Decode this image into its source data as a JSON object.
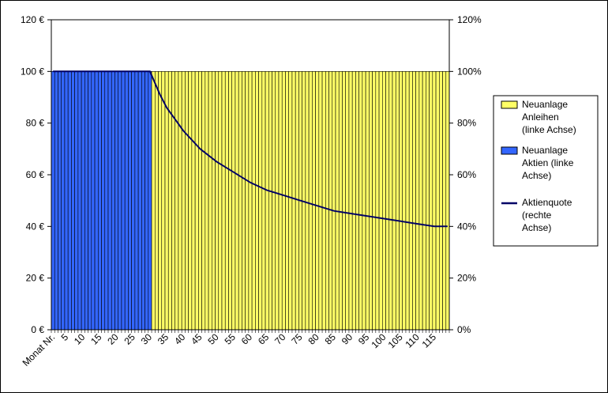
{
  "chart_data": {
    "type": "bar",
    "x": {
      "start": 1,
      "end": 119,
      "tick_values": [
        5,
        10,
        15,
        20,
        25,
        30,
        35,
        40,
        45,
        50,
        55,
        60,
        65,
        70,
        75,
        80,
        85,
        90,
        95,
        100,
        105,
        110,
        115
      ],
      "first_tick_label": "Monat Nr."
    },
    "y_left": {
      "ylim": [
        0,
        120
      ],
      "ticks": [
        "0 €",
        "20 €",
        "40 €",
        "60 €",
        "80 €",
        "100 €",
        "120 €"
      ]
    },
    "y_right": {
      "ylim": [
        0,
        120
      ],
      "ticks": [
        "0%",
        "20%",
        "40%",
        "60%",
        "80%",
        "100%",
        "120%"
      ]
    },
    "series": [
      {
        "name": "Neuanlage Anleihen (linke Achse)",
        "kind": "bar",
        "color": "#ffff66",
        "rule": "value 100 for months 31–119, 0 otherwise"
      },
      {
        "name": "Neuanlage Aktien (linke Achse)",
        "kind": "bar",
        "color": "#3366ff",
        "rule": "value 100 for months 1–30, 0 otherwise"
      },
      {
        "name": "Aktienquote (rechte Achse)",
        "kind": "line",
        "color": "#000066",
        "points": [
          [
            1,
            100
          ],
          [
            30,
            100
          ],
          [
            33,
            91
          ],
          [
            35,
            86
          ],
          [
            40,
            77
          ],
          [
            45,
            70
          ],
          [
            50,
            65
          ],
          [
            55,
            61
          ],
          [
            60,
            57
          ],
          [
            65,
            54
          ],
          [
            70,
            52
          ],
          [
            75,
            50
          ],
          [
            80,
            48
          ],
          [
            85,
            46
          ],
          [
            90,
            45
          ],
          [
            95,
            44
          ],
          [
            100,
            43
          ],
          [
            105,
            42
          ],
          [
            110,
            41
          ],
          [
            115,
            40
          ],
          [
            119,
            40
          ]
        ]
      }
    ],
    "legend_placement": "right",
    "grid": false
  },
  "legend": {
    "items": [
      {
        "label": "Neuanlage Anleihen (linke Achse)",
        "lines": [
          "Neuanlage",
          "Anleihen",
          "(linke Achse)"
        ],
        "color": "#ffff66",
        "kind": "bar"
      },
      {
        "label": "Neuanlage Aktien (linke Achse)",
        "lines": [
          "Neuanlage",
          "Aktien (linke",
          "Achse)"
        ],
        "color": "#3366ff",
        "kind": "bar"
      },
      {
        "label": "Aktienquote (rechte Achse)",
        "lines": [
          "Aktienquote",
          "(rechte",
          "Achse)"
        ],
        "color": "#000066",
        "kind": "line"
      }
    ]
  }
}
